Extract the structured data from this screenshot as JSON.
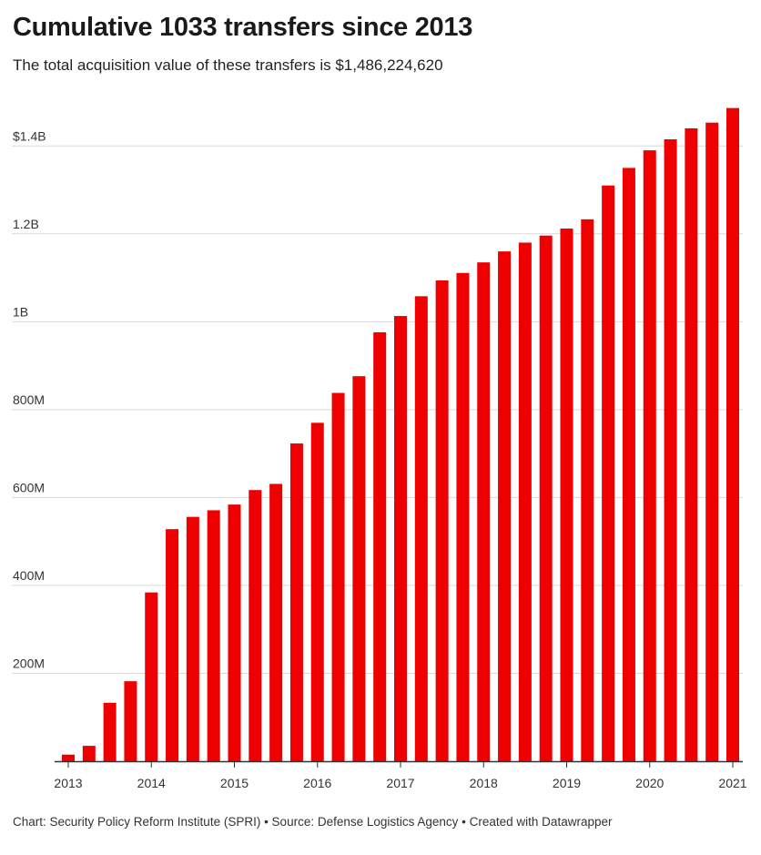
{
  "title": "Cumulative 1033 transfers since 2013",
  "subtitle": "The total acquisition value of these transfers is $1,486,224,620",
  "footer": "Chart: Security Policy Reform Institute (SPRI) • Source: Defense Logistics Agency • Created with Datawrapper",
  "colors": {
    "bar": "#ee0000",
    "grid": "#d9d9d9",
    "axis": "#333333"
  },
  "chart_data": {
    "type": "bar",
    "title": "Cumulative 1033 transfers since 2013",
    "xlabel": "",
    "ylabel": "",
    "ylim": [
      0,
      1500000000
    ],
    "grid": true,
    "y_ticks": [
      {
        "value": 200000000,
        "label": "200M"
      },
      {
        "value": 400000000,
        "label": "400M"
      },
      {
        "value": 600000000,
        "label": "600M"
      },
      {
        "value": 800000000,
        "label": "800M"
      },
      {
        "value": 1000000000,
        "label": "1B"
      },
      {
        "value": 1200000000,
        "label": "1.2B"
      },
      {
        "value": 1400000000,
        "label": "$1.4B"
      }
    ],
    "x_ticks": [
      {
        "value": 2013.0,
        "label": "2013"
      },
      {
        "value": 2014.0,
        "label": "2014"
      },
      {
        "value": 2015.0,
        "label": "2015"
      },
      {
        "value": 2016.0,
        "label": "2016"
      },
      {
        "value": 2017.0,
        "label": "2017"
      },
      {
        "value": 2018.0,
        "label": "2018"
      },
      {
        "value": 2019.0,
        "label": "2019"
      },
      {
        "value": 2020.0,
        "label": "2020"
      },
      {
        "value": 2021.0,
        "label": "2021"
      }
    ],
    "x_range": [
      2013.0,
      2021.0
    ],
    "categories": [
      "2013 Q1",
      "2013 Q2",
      "2013 Q3",
      "2013 Q4",
      "2014 Q1",
      "2014 Q2",
      "2014 Q3",
      "2014 Q4",
      "2015 Q1",
      "2015 Q2",
      "2015 Q3",
      "2015 Q4",
      "2016 Q1",
      "2016 Q2",
      "2016 Q3",
      "2016 Q4",
      "2017 Q1",
      "2017 Q2",
      "2017 Q3",
      "2017 Q4",
      "2018 Q1",
      "2018 Q2",
      "2018 Q3",
      "2018 Q4",
      "2019 Q1",
      "2019 Q2",
      "2019 Q3",
      "2019 Q4",
      "2020 Q1",
      "2020 Q2",
      "2020 Q3",
      "2020 Q4",
      "2021 Q1"
    ],
    "x": [
      2013.0,
      2013.25,
      2013.5,
      2013.75,
      2014.0,
      2014.25,
      2014.5,
      2014.75,
      2015.0,
      2015.25,
      2015.5,
      2015.75,
      2016.0,
      2016.25,
      2016.5,
      2016.75,
      2017.0,
      2017.25,
      2017.5,
      2017.75,
      2018.0,
      2018.25,
      2018.5,
      2018.75,
      2019.0,
      2019.25,
      2019.5,
      2019.75,
      2020.0,
      2020.25,
      2020.5,
      2020.75,
      2021.0
    ],
    "values": [
      15000000,
      35000000,
      133000000,
      182000000,
      384000000,
      528000000,
      556000000,
      571000000,
      584000000,
      617000000,
      631000000,
      723000000,
      770000000,
      838000000,
      876000000,
      976000000,
      1013000000,
      1058000000,
      1094000000,
      1111000000,
      1135000000,
      1160000000,
      1180000000,
      1196000000,
      1212000000,
      1233000000,
      1310000000,
      1350000000,
      1390000000,
      1415000000,
      1440000000,
      1453000000,
      1486224620
    ]
  }
}
